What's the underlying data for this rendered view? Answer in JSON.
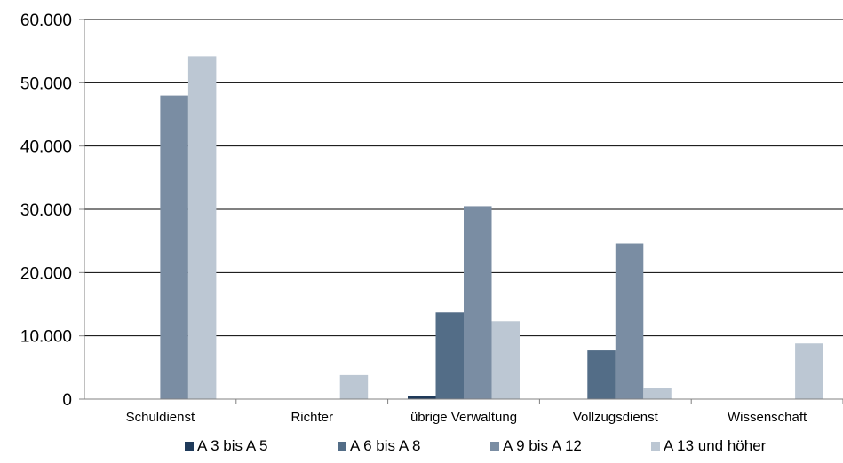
{
  "chart_data": {
    "type": "bar",
    "categories": [
      "Schuldienst",
      "Richter",
      "übrige Verwaltung",
      "Vollzugsdienst",
      "Wissenschaft"
    ],
    "series": [
      {
        "name": "A 3 bis A 5",
        "color": "#1f3a5a",
        "values": [
          0,
          0,
          500,
          0,
          0
        ]
      },
      {
        "name": "A 6 bis A 8",
        "color": "#536d87",
        "values": [
          0,
          0,
          13700,
          7700,
          0
        ]
      },
      {
        "name": "A 9 bis A 12",
        "color": "#7a8da3",
        "values": [
          48000,
          0,
          30500,
          24600,
          0
        ]
      },
      {
        "name": "A 13 und höher",
        "color": "#bcc7d3",
        "values": [
          54200,
          3800,
          12300,
          1700,
          8800
        ]
      }
    ],
    "y_ticks": [
      "0",
      "10.000",
      "20.000",
      "30.000",
      "40.000",
      "50.000",
      "60.000"
    ],
    "ylim": [
      0,
      60000
    ],
    "grid": true,
    "legend_position": "bottom"
  }
}
